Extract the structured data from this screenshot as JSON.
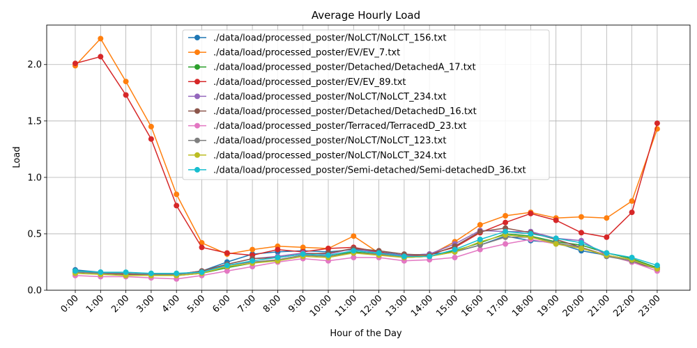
{
  "chart_data": {
    "type": "line",
    "title": "Average Hourly Load",
    "xlabel": "Hour of the Day",
    "ylabel": "Load",
    "ylim": [
      0,
      2.35
    ],
    "yticks": [
      "0.0",
      "0.5",
      "1.0",
      "1.5",
      "2.0"
    ],
    "grid": true,
    "legend_position": "top-center",
    "categories": [
      "0:00",
      "1:00",
      "2:00",
      "3:00",
      "4:00",
      "5:00",
      "6:00",
      "7:00",
      "8:00",
      "9:00",
      "10:00",
      "11:00",
      "12:00",
      "13:00",
      "14:00",
      "15:00",
      "16:00",
      "17:00",
      "18:00",
      "19:00",
      "20:00",
      "21:00",
      "22:00",
      "23:00"
    ],
    "series": [
      {
        "name": "./data/load/processed_poster/NoLCT/NoLCT_156.txt",
        "color": "#1f77b4",
        "values": [
          0.18,
          0.16,
          0.15,
          0.14,
          0.14,
          0.17,
          0.25,
          0.32,
          0.34,
          0.35,
          0.34,
          0.36,
          0.34,
          0.31,
          0.32,
          0.34,
          0.4,
          0.48,
          0.44,
          0.42,
          0.35,
          0.31,
          0.27,
          0.2
        ]
      },
      {
        "name": "./data/load/processed_poster/EV/EV_7.txt",
        "color": "#ff7f0e",
        "values": [
          1.99,
          2.23,
          1.85,
          1.45,
          0.85,
          0.42,
          0.32,
          0.36,
          0.39,
          0.38,
          0.37,
          0.48,
          0.33,
          0.3,
          0.31,
          0.43,
          0.58,
          0.66,
          0.69,
          0.64,
          0.65,
          0.64,
          0.79,
          1.43
        ]
      },
      {
        "name": "./data/load/processed_poster/Detached/DetachedA_17.txt",
        "color": "#2ca02c",
        "values": [
          0.16,
          0.15,
          0.14,
          0.14,
          0.13,
          0.15,
          0.2,
          0.24,
          0.27,
          0.31,
          0.3,
          0.34,
          0.32,
          0.29,
          0.3,
          0.35,
          0.42,
          0.5,
          0.48,
          0.43,
          0.4,
          0.33,
          0.28,
          0.2
        ]
      },
      {
        "name": "./data/load/processed_poster/EV/EV_89.txt",
        "color": "#d62728",
        "values": [
          2.01,
          2.07,
          1.73,
          1.34,
          0.75,
          0.38,
          0.33,
          0.31,
          0.36,
          0.34,
          0.37,
          0.38,
          0.34,
          0.3,
          0.32,
          0.38,
          0.51,
          0.6,
          0.68,
          0.62,
          0.51,
          0.47,
          0.69,
          1.48
        ]
      },
      {
        "name": "./data/load/processed_poster/NoLCT/NoLCT_234.txt",
        "color": "#9467bd",
        "values": [
          0.17,
          0.15,
          0.15,
          0.14,
          0.14,
          0.17,
          0.23,
          0.28,
          0.3,
          0.33,
          0.32,
          0.37,
          0.33,
          0.31,
          0.32,
          0.41,
          0.53,
          0.52,
          0.52,
          0.46,
          0.44,
          0.31,
          0.27,
          0.19
        ]
      },
      {
        "name": "./data/load/processed_poster/Detached/DetachedD_16.txt",
        "color": "#8c564b",
        "values": [
          0.17,
          0.15,
          0.14,
          0.14,
          0.14,
          0.17,
          0.23,
          0.28,
          0.29,
          0.32,
          0.33,
          0.37,
          0.35,
          0.32,
          0.31,
          0.39,
          0.52,
          0.55,
          0.51,
          0.45,
          0.38,
          0.31,
          0.25,
          0.19
        ]
      },
      {
        "name": "./data/load/processed_poster/Terraced/TerracedD_23.txt",
        "color": "#e377c2",
        "values": [
          0.13,
          0.12,
          0.12,
          0.11,
          0.1,
          0.13,
          0.17,
          0.21,
          0.25,
          0.28,
          0.26,
          0.29,
          0.29,
          0.26,
          0.27,
          0.29,
          0.36,
          0.41,
          0.45,
          0.41,
          0.37,
          0.31,
          0.25,
          0.17
        ]
      },
      {
        "name": "./data/load/processed_poster/NoLCT/NoLCT_123.txt",
        "color": "#7f7f7f",
        "values": [
          0.16,
          0.15,
          0.15,
          0.14,
          0.14,
          0.16,
          0.22,
          0.25,
          0.27,
          0.31,
          0.3,
          0.33,
          0.32,
          0.29,
          0.3,
          0.34,
          0.4,
          0.47,
          0.47,
          0.42,
          0.38,
          0.3,
          0.26,
          0.19
        ]
      },
      {
        "name": "./data/load/processed_poster/NoLCT/NoLCT_324.txt",
        "color": "#bcbd22",
        "values": [
          0.15,
          0.14,
          0.13,
          0.13,
          0.13,
          0.15,
          0.21,
          0.24,
          0.26,
          0.3,
          0.29,
          0.33,
          0.31,
          0.29,
          0.3,
          0.34,
          0.43,
          0.49,
          0.47,
          0.41,
          0.37,
          0.31,
          0.27,
          0.19
        ]
      },
      {
        "name": "./data/load/processed_poster/Semi-detached/Semi-detachedD_36.txt",
        "color": "#17becf",
        "values": [
          0.17,
          0.16,
          0.16,
          0.15,
          0.15,
          0.16,
          0.22,
          0.26,
          0.29,
          0.32,
          0.31,
          0.35,
          0.33,
          0.3,
          0.3,
          0.36,
          0.45,
          0.52,
          0.5,
          0.46,
          0.42,
          0.33,
          0.29,
          0.22
        ]
      }
    ]
  }
}
